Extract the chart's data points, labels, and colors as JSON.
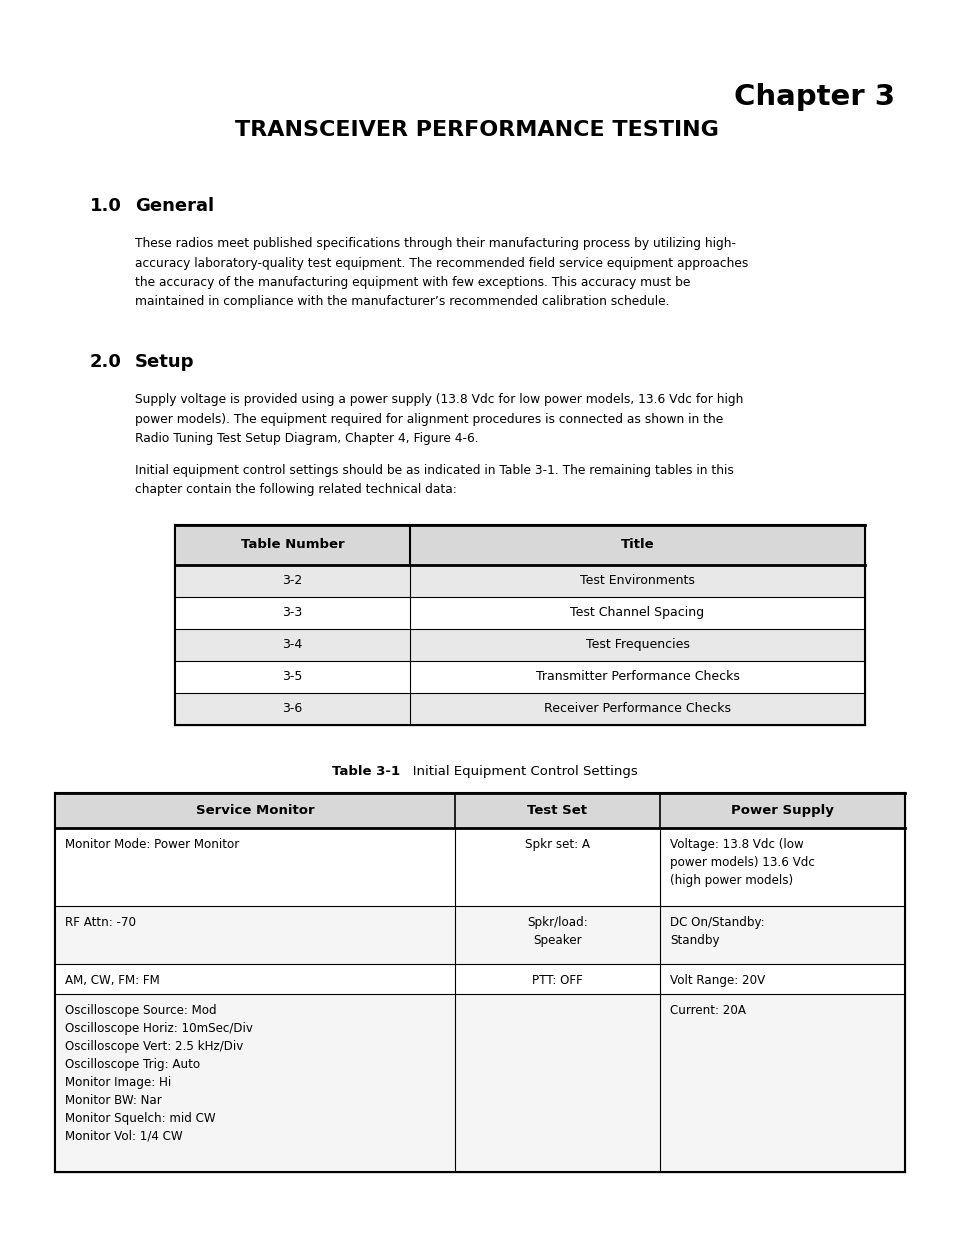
{
  "chapter_label": "Chapter 3",
  "main_title": "TRANSCEIVER PERFORMANCE TESTING",
  "section1_num": "1.0",
  "section1_title": "General",
  "section2_num": "2.0",
  "section2_title": "Setup",
  "body1_lines": [
    "These radios meet published specifications through their manufacturing process by utilizing high-",
    "accuracy laboratory-quality test equipment. The recommended field service equipment approaches",
    "the accuracy of the manufacturing equipment with few exceptions. This accuracy must be",
    "maintained in compliance with the manufacturer’s recommended calibration schedule."
  ],
  "body2a_lines": [
    "Supply voltage is provided using a power supply (13.8 Vdc for low power models, 13.6 Vdc for high",
    "power models). The equipment required for alignment procedures is connected as shown in the",
    "Radio Tuning Test Setup Diagram, Chapter 4, Figure 4-6."
  ],
  "body2b_lines": [
    "Initial equipment control settings should be as indicated in Table 3-1. The remaining tables in this",
    "chapter contain the following related technical data:"
  ],
  "table1_headers": [
    "Table Number",
    "Title"
  ],
  "table1_rows": [
    [
      "3-2",
      "Test Environments"
    ],
    [
      "3-3",
      "Test Channel Spacing"
    ],
    [
      "3-4",
      "Test Frequencies"
    ],
    [
      "3-5",
      "Transmitter Performance Checks"
    ],
    [
      "3-6",
      "Receiver Performance Checks"
    ]
  ],
  "table1_row_bg": [
    "#e8e8e8",
    "#ffffff",
    "#e8e8e8",
    "#ffffff",
    "#e8e8e8"
  ],
  "table2_caption_bold": "Table 3-1",
  "table2_caption_normal": "   Initial Equipment Control Settings",
  "table2_headers": [
    "Service Monitor",
    "Test Set",
    "Power Supply"
  ],
  "table2_rows": [
    {
      "col1": "Monitor Mode: Power Monitor",
      "col2": "Spkr set: A",
      "col3": "Voltage: 13.8 Vdc (low\npower models) 13.6 Vdc\n(high power models)",
      "bg": "#ffffff"
    },
    {
      "col1": "RF Attn: -70",
      "col2": "Spkr/load:\nSpeaker",
      "col3": "DC On/Standby:\nStandby",
      "bg": "#f5f5f5"
    },
    {
      "col1": "AM, CW, FM: FM",
      "col2": "PTT: OFF",
      "col3": "Volt Range: 20V",
      "bg": "#ffffff"
    },
    {
      "col1": "Oscilloscope Source: Mod\nOscilloscope Horiz: 10mSec/Div\nOscilloscope Vert: 2.5 kHz/Div\nOscilloscope Trig: Auto\nMonitor Image: Hi\nMonitor BW: Nar\nMonitor Squelch: mid CW\nMonitor Vol: 1/4 CW",
      "col2": "",
      "col3": "Current: 20A",
      "bg": "#f5f5f5"
    }
  ],
  "bg_color": "#ffffff"
}
